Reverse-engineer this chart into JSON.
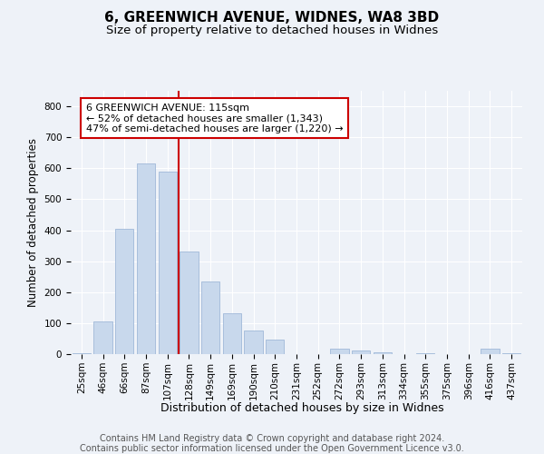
{
  "title1": "6, GREENWICH AVENUE, WIDNES, WA8 3BD",
  "title2": "Size of property relative to detached houses in Widnes",
  "xlabel": "Distribution of detached houses by size in Widnes",
  "ylabel": "Number of detached properties",
  "categories": [
    "25sqm",
    "46sqm",
    "66sqm",
    "87sqm",
    "107sqm",
    "128sqm",
    "149sqm",
    "169sqm",
    "190sqm",
    "210sqm",
    "231sqm",
    "252sqm",
    "272sqm",
    "293sqm",
    "313sqm",
    "334sqm",
    "355sqm",
    "375sqm",
    "396sqm",
    "416sqm",
    "437sqm"
  ],
  "values": [
    2,
    105,
    405,
    615,
    590,
    330,
    235,
    133,
    75,
    48,
    0,
    0,
    17,
    12,
    7,
    0,
    3,
    0,
    0,
    18,
    3
  ],
  "bar_color": "#c8d8ec",
  "bar_edgecolor": "#a0b8d8",
  "vline_color": "#cc0000",
  "vline_x": 4.5,
  "annotation_text": "6 GREENWICH AVENUE: 115sqm\n← 52% of detached houses are smaller (1,343)\n47% of semi-detached houses are larger (1,220) →",
  "annotation_box_color": "#ffffff",
  "annotation_box_edgecolor": "#cc0000",
  "ylim": [
    0,
    850
  ],
  "yticks": [
    0,
    100,
    200,
    300,
    400,
    500,
    600,
    700,
    800
  ],
  "footer1": "Contains HM Land Registry data © Crown copyright and database right 2024.",
  "footer2": "Contains public sector information licensed under the Open Government Licence v3.0.",
  "bg_color": "#eef2f8",
  "plot_bg_color": "#eef2f8",
  "title_fontsize": 11,
  "subtitle_fontsize": 9.5,
  "ylabel_fontsize": 8.5,
  "xlabel_fontsize": 9,
  "tick_fontsize": 7.5,
  "footer_fontsize": 7,
  "ann_fontsize": 8
}
